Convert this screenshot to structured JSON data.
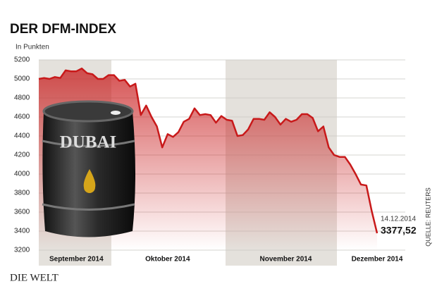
{
  "chart_data": {
    "type": "area-line",
    "title": "DER DFM-INDEX",
    "subtitle": "In Punkten",
    "source": "QUELLE: REUTERS",
    "publisher": "DIE WELT",
    "barrel_label": "DUBAI",
    "annotations": [
      "14.12.2014",
      "3377,52"
    ],
    "categories": [
      null,
      null,
      null,
      null,
      null,
      null,
      null,
      "September 2014",
      null,
      null,
      null,
      null,
      null,
      null,
      null,
      null,
      null,
      null,
      null,
      null,
      null,
      null,
      null,
      null,
      "Oktober 2014",
      null,
      null,
      null,
      null,
      null,
      null,
      null,
      null,
      null,
      null,
      null,
      null,
      null,
      null,
      null,
      null,
      null,
      null,
      null,
      null,
      null,
      "November 2014",
      null,
      null,
      null,
      null,
      null,
      null,
      null,
      null,
      null,
      null,
      null,
      null,
      null,
      null,
      null,
      null,
      "Dezember 2014"
    ],
    "values": [
      5000,
      5010,
      5000,
      5020,
      5010,
      5090,
      5080,
      5080,
      5110,
      5060,
      5050,
      5000,
      5000,
      5040,
      5040,
      4980,
      4990,
      4920,
      4950,
      4620,
      4720,
      4600,
      4500,
      4280,
      4420,
      4390,
      4440,
      4550,
      4580,
      4690,
      4620,
      4630,
      4620,
      4540,
      4610,
      4570,
      4560,
      4400,
      4410,
      4470,
      4580,
      4580,
      4570,
      4650,
      4600,
      4520,
      4580,
      4550,
      4570,
      4630,
      4630,
      4590,
      4450,
      4500,
      4280,
      4200,
      4180,
      4180,
      4100,
      4000,
      3890,
      3880,
      3610,
      3377.52
    ],
    "color": "#c8191a",
    "ylim": [
      3200,
      5200
    ],
    "yticks": [
      3200,
      3400,
      3600,
      3800,
      4000,
      4200,
      4400,
      4600,
      4800,
      5000,
      5200
    ],
    "grid": true
  }
}
